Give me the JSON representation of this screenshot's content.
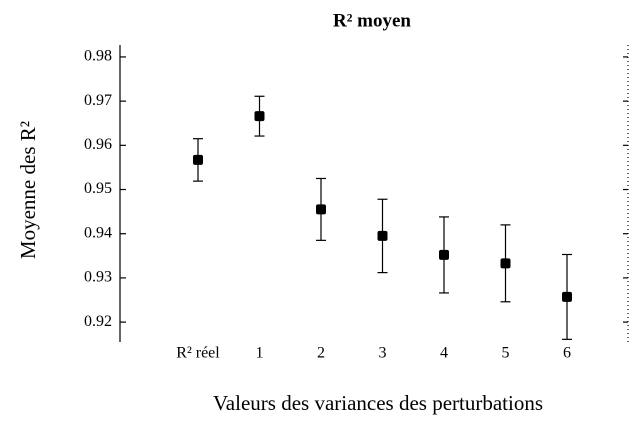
{
  "chart_data": {
    "type": "errorbar",
    "title": "R² moyen",
    "xlabel": "Valeurs des variances des perturbations",
    "ylabel": "Moyenne des R²",
    "categories": [
      "R² réel",
      "1",
      "2",
      "3",
      "4",
      "5",
      "6"
    ],
    "values": [
      0.9567,
      0.9666,
      0.9455,
      0.9395,
      0.9352,
      0.9333,
      0.9257
    ],
    "errors": [
      0.0048,
      0.0045,
      0.007,
      0.0083,
      0.0086,
      0.0087,
      0.0096
    ],
    "color": "#000000",
    "ylim": [
      0.9155,
      0.9827
    ],
    "yticks": [
      0.92,
      0.93,
      0.94,
      0.95,
      0.96,
      0.97,
      0.98
    ]
  }
}
